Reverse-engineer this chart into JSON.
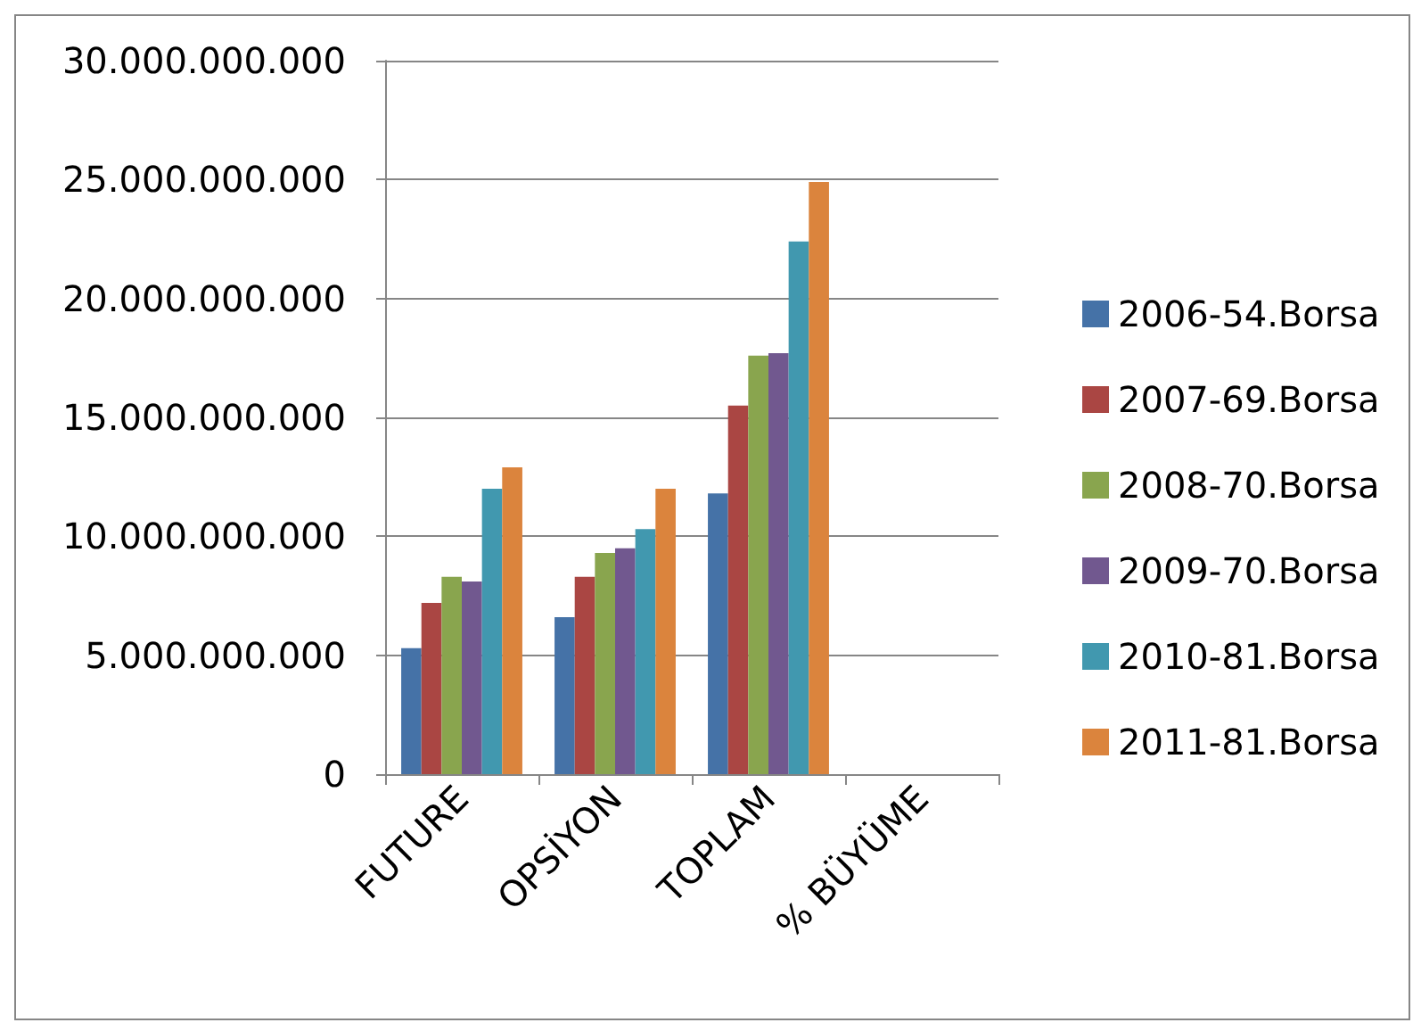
{
  "chart_data": {
    "type": "bar",
    "categories": [
      "FUTURE",
      "OPSİYON",
      "TOPLAM",
      "% BÜYÜME"
    ],
    "series": [
      {
        "name": "2006-54.Borsa",
        "color": "#4572a7",
        "values": [
          5300000000,
          6600000000,
          11800000000,
          null
        ]
      },
      {
        "name": "2007-69.Borsa",
        "color": "#aa4643",
        "values": [
          7200000000,
          8300000000,
          15500000000,
          null
        ]
      },
      {
        "name": "2008-70.Borsa",
        "color": "#89a54e",
        "values": [
          8300000000,
          9300000000,
          17600000000,
          null
        ]
      },
      {
        "name": "2009-70.Borsa",
        "color": "#71588f",
        "values": [
          8100000000,
          9500000000,
          17700000000,
          null
        ]
      },
      {
        "name": "2010-81.Borsa",
        "color": "#4198af",
        "values": [
          12000000000,
          10300000000,
          22400000000,
          null
        ]
      },
      {
        "name": "2011-81.Borsa",
        "color": "#db843d",
        "values": [
          12900000000,
          12000000000,
          24900000000,
          null
        ]
      }
    ],
    "ylim": [
      0,
      30000000000
    ],
    "yticks": [
      0,
      {
        "value": 5000000000,
        "label": "5.000.000.000"
      },
      {
        "value": 10000000000,
        "label": "10.000.000.000"
      },
      {
        "value": 15000000000,
        "label": "15.000.000.000"
      },
      {
        "value": 20000000000,
        "label": "20.000.000.000"
      },
      {
        "value": 25000000000,
        "label": "25.000.000.000"
      },
      {
        "value": 30000000000,
        "label": "30.000.000.000"
      }
    ],
    "grid": "y",
    "legend": "right"
  }
}
